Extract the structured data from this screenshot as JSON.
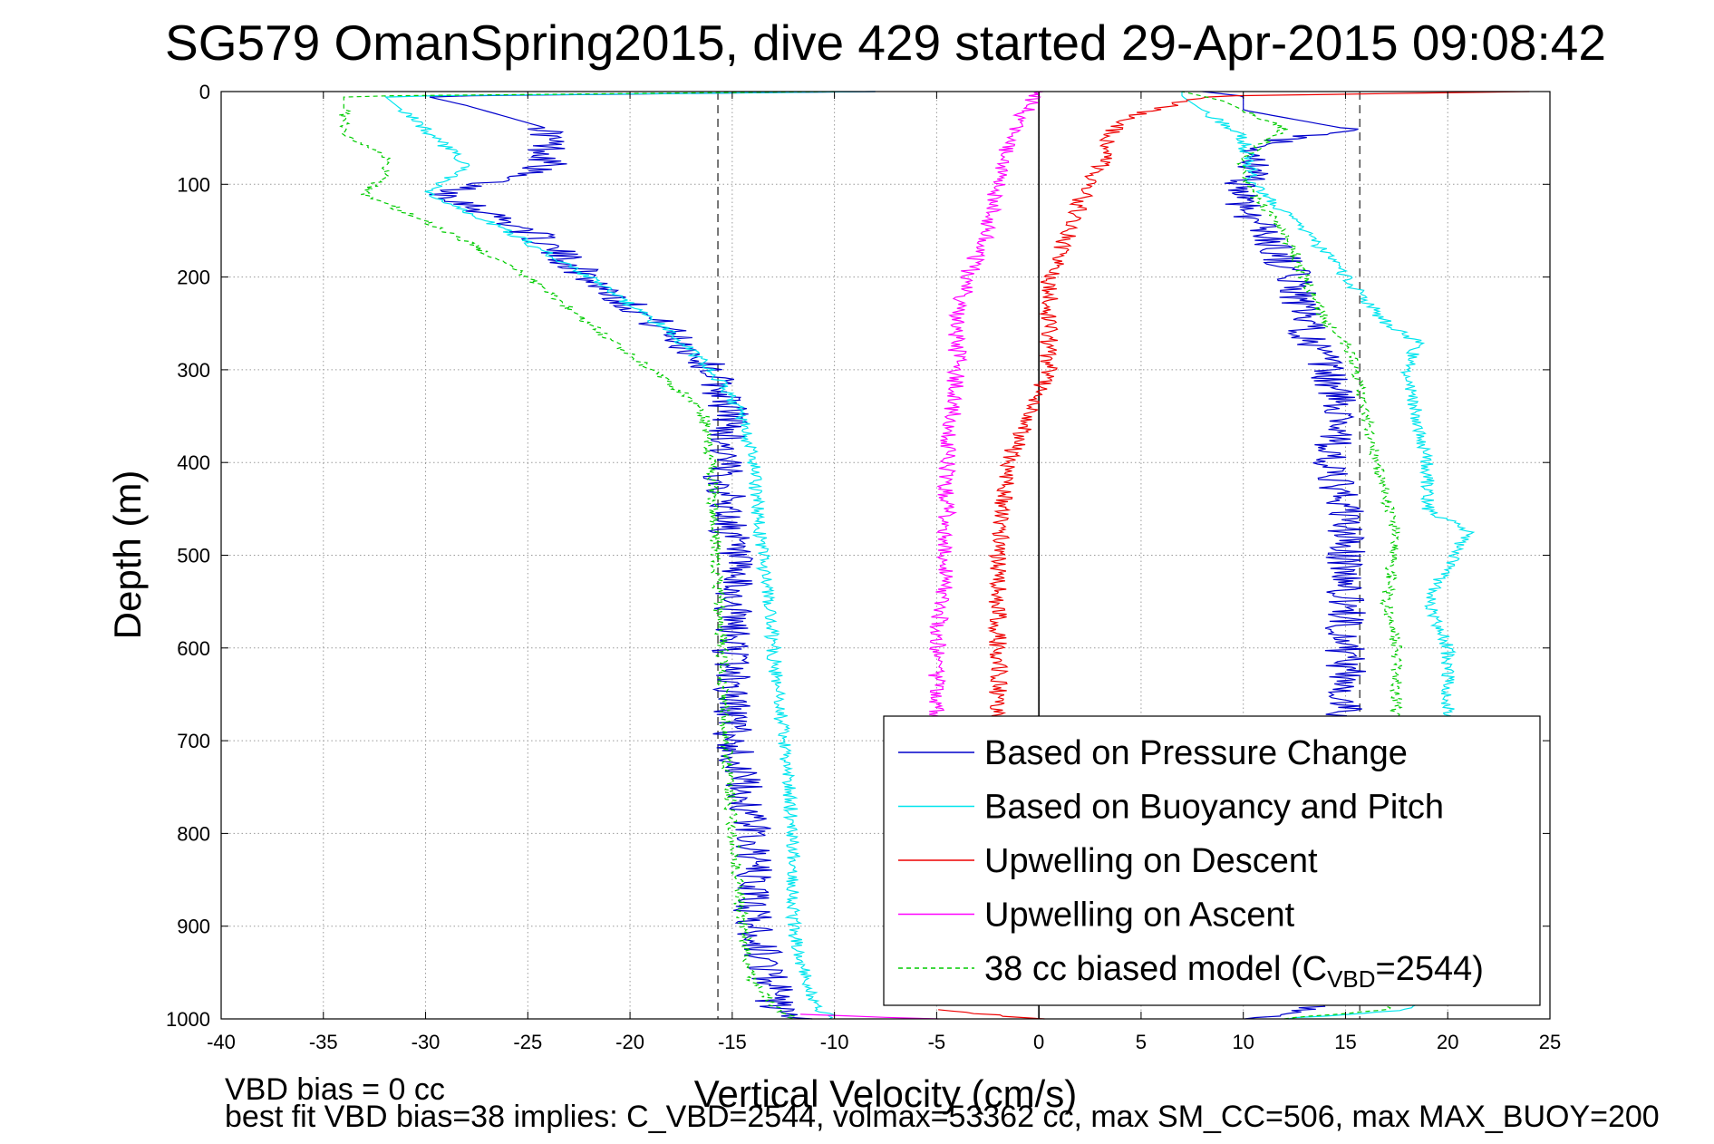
{
  "chart_data": {
    "type": "line",
    "title": "SG579 OmanSpring2015, dive 429 started 29-Apr-2015 09:08:42",
    "xlabel": "Vertical Velocity (cm/s)",
    "ylabel": "Depth (m)",
    "xlim": [
      -40,
      25
    ],
    "ylim": [
      0,
      1000
    ],
    "y_reversed": true,
    "grid": true,
    "x_ticks": [
      "-40",
      "-35",
      "-30",
      "-25",
      "-20",
      "-15",
      "-10",
      "-5",
      "0",
      "5",
      "10",
      "15",
      "20",
      "25"
    ],
    "y_ticks": [
      "0",
      "100",
      "200",
      "300",
      "400",
      "500",
      "600",
      "700",
      "800",
      "900",
      "1000"
    ],
    "reference_lines": [
      {
        "x": -15.7,
        "style": "dashed",
        "color": "#555555"
      },
      {
        "x": 0,
        "style": "solid",
        "color": "#000000"
      },
      {
        "x": 15.7,
        "style": "dashed",
        "color": "#555555"
      }
    ],
    "legend": {
      "placement": "lower-right",
      "entries": [
        {
          "label": "Based on Pressure Change",
          "color": "#0000cc",
          "style": "solid"
        },
        {
          "label": "Based on Buoyancy and Pitch",
          "color": "#00e5ee",
          "style": "solid"
        },
        {
          "label": "Upwelling on Descent",
          "color": "#ee0000",
          "style": "solid"
        },
        {
          "label": "Upwelling on Ascent",
          "color": "#ff00ff",
          "style": "solid"
        },
        {
          "label_pre": "38 cc biased model (C",
          "label_sub": "VBD",
          "label_post": "=2544)",
          "color": "#00cc00",
          "style": "dashed"
        }
      ]
    },
    "series": [
      {
        "name": "Based on Pressure Change",
        "color": "#0000cc",
        "dash": false,
        "noise": 1.0,
        "noise_start": 40,
        "descent": {
          "depth": [
            0,
            5,
            15,
            40,
            80,
            110,
            150,
            200,
            260,
            300,
            350,
            400,
            500,
            600,
            700,
            800,
            900,
            960,
            985,
            1000
          ],
          "velocity": [
            -8,
            -30,
            -28,
            -24,
            -24,
            -29,
            -25,
            -22,
            -18,
            -16,
            -15,
            -15.5,
            -15,
            -15,
            -15,
            -14,
            -14,
            -13,
            -13,
            -12
          ]
        },
        "ascent": {
          "depth": [
            1000,
            990,
            960,
            900,
            800,
            700,
            600,
            500,
            450,
            400,
            350,
            300,
            250,
            200,
            150,
            120,
            100,
            80,
            60,
            40,
            20,
            5,
            0
          ],
          "velocity": [
            10,
            13,
            15,
            15,
            15,
            15,
            15,
            15,
            15,
            14,
            15,
            14,
            13,
            12.5,
            11,
            10,
            10,
            10.5,
            10,
            15,
            10,
            10,
            8
          ]
        }
      },
      {
        "name": "Based on Buoyancy and Pitch",
        "color": "#00e5ee",
        "dash": false,
        "noise": 0.35,
        "noise_start": 20,
        "descent": {
          "depth": [
            0,
            5,
            40,
            60,
            80,
            110,
            150,
            200,
            260,
            300,
            350,
            400,
            500,
            600,
            700,
            800,
            900,
            950,
            985,
            1000
          ],
          "velocity": [
            -8,
            -32,
            -30,
            -29,
            -28,
            -30,
            -26,
            -22,
            -18,
            -16,
            -14.5,
            -14,
            -13.5,
            -13,
            -12.5,
            -12,
            -12,
            -11.5,
            -11,
            -10
          ]
        },
        "ascent": {
          "depth": [
            1000,
            990,
            950,
            850,
            750,
            650,
            600,
            550,
            475,
            450,
            400,
            350,
            300,
            270,
            250,
            200,
            150,
            100,
            50,
            20,
            5,
            0
          ],
          "velocity": [
            12,
            18,
            20,
            20,
            20,
            20,
            20,
            19,
            21,
            19,
            19,
            18.5,
            18,
            18.5,
            17,
            15,
            13,
            10.5,
            10,
            8,
            7,
            7
          ]
        }
      },
      {
        "name": "Upwelling on Descent",
        "color": "#ee0000",
        "dash": false,
        "noise": 0.45,
        "noise_start": 5,
        "descent": {
          "depth": [
            0,
            5,
            30,
            50,
            80,
            120,
            150,
            200,
            300,
            400,
            500,
            600,
            660,
            700
          ],
          "velocity": [
            24,
            8,
            4,
            3.5,
            3,
            2,
            1.5,
            0.5,
            0.5,
            -1.5,
            -2,
            -2,
            -2,
            -2
          ]
        },
        "ascent": {
          "depth": [
            990,
            1000
          ],
          "velocity": [
            -5,
            0
          ]
        }
      },
      {
        "name": "Upwelling on Ascent",
        "color": "#ff00ff",
        "dash": false,
        "noise": 0.45,
        "noise_start": 0,
        "descent": {
          "depth": [
            0,
            50,
            100,
            150,
            200,
            250,
            300,
            400,
            500,
            600,
            700
          ],
          "velocity": [
            0,
            -1.5,
            -2,
            -2.5,
            -3.5,
            -4,
            -4,
            -4.5,
            -4.5,
            -5,
            -5
          ]
        },
        "ascent": {
          "depth": [
            995,
            1000
          ],
          "velocity": [
            -12,
            -5
          ]
        }
      },
      {
        "name": "38 cc biased model (CVBD=2544)",
        "color": "#00cc00",
        "dash": true,
        "noise": 0.3,
        "noise_start": 20,
        "descent": {
          "depth": [
            0,
            5,
            45,
            70,
            90,
            110,
            150,
            200,
            250,
            300,
            340,
            400,
            500,
            600,
            700,
            800,
            900,
            960,
            985,
            1000
          ],
          "velocity": [
            -10,
            -34,
            -34,
            -32,
            -32,
            -33,
            -29,
            -25,
            -22,
            -19,
            -16.5,
            -16,
            -15.8,
            -15.5,
            -15.3,
            -15,
            -14.5,
            -14,
            -13,
            -12
          ]
        },
        "ascent": {
          "depth": [
            1000,
            990,
            950,
            850,
            750,
            650,
            600,
            550,
            480,
            400,
            350,
            300,
            270,
            250,
            200,
            150,
            100,
            70,
            40,
            10,
            0
          ],
          "velocity": [
            12,
            17,
            17,
            17,
            17,
            17.5,
            17.5,
            17,
            17.5,
            16.5,
            16,
            15.5,
            15,
            14,
            13,
            12,
            10,
            10,
            12,
            9,
            7
          ]
        }
      }
    ],
    "footnotes": [
      "VBD bias = 0 cc",
      "best fit VBD bias=38 implies: C_VBD=2544, volmax=53362 cc, max SM_CC=506, max MAX_BUOY=200"
    ]
  }
}
